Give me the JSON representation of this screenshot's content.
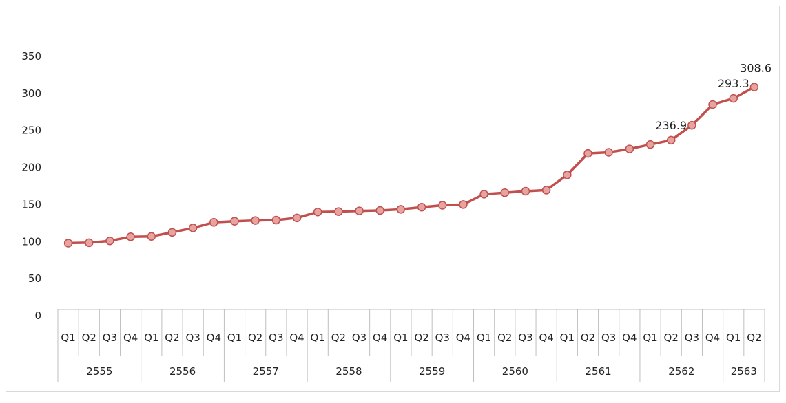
{
  "chart_data": {
    "type": "line",
    "title": "",
    "xlabel": "",
    "ylabel": "",
    "ylim": [
      0,
      350
    ],
    "yticks": [
      "0",
      "50",
      "100",
      "150",
      "200",
      "250",
      "300",
      "350"
    ],
    "grid": false,
    "legend": "none",
    "colors": {
      "line": "#c0504d",
      "marker_fill": "#e6a3a0",
      "marker_stroke": "#c0504d",
      "axis": "#bfbfbf"
    },
    "years": [
      {
        "label": "2555",
        "quarters": [
          "Q1",
          "Q2",
          "Q3",
          "Q4"
        ]
      },
      {
        "label": "2556",
        "quarters": [
          "Q1",
          "Q2",
          "Q3",
          "Q4"
        ]
      },
      {
        "label": "2557",
        "quarters": [
          "Q1",
          "Q2",
          "Q3",
          "Q4"
        ]
      },
      {
        "label": "2558",
        "quarters": [
          "Q1",
          "Q2",
          "Q3",
          "Q4"
        ]
      },
      {
        "label": "2559",
        "quarters": [
          "Q1",
          "Q2",
          "Q3",
          "Q4"
        ]
      },
      {
        "label": "2560",
        "quarters": [
          "Q1",
          "Q2",
          "Q3",
          "Q4"
        ]
      },
      {
        "label": "2561",
        "quarters": [
          "Q1",
          "Q2",
          "Q3",
          "Q4"
        ]
      },
      {
        "label": "2562",
        "quarters": [
          "Q1",
          "Q2",
          "Q3",
          "Q4"
        ]
      },
      {
        "label": "2563",
        "quarters": [
          "Q1",
          "Q2"
        ]
      }
    ],
    "values": [
      98,
      98.5,
      101,
      106.5,
      107,
      112.5,
      118.5,
      126,
      127.5,
      128.5,
      129,
      132,
      140,
      140.5,
      141.5,
      142,
      143.5,
      146.5,
      149,
      150,
      164,
      166,
      168,
      169.5,
      190,
      219,
      220.5,
      225,
      231,
      236.9,
      257,
      285,
      293.3,
      308.6
    ],
    "data_labels": [
      {
        "index": 29,
        "text": "236.9"
      },
      {
        "index": 32,
        "text": "293.3"
      },
      {
        "index": 33,
        "text": "308.6"
      }
    ]
  }
}
